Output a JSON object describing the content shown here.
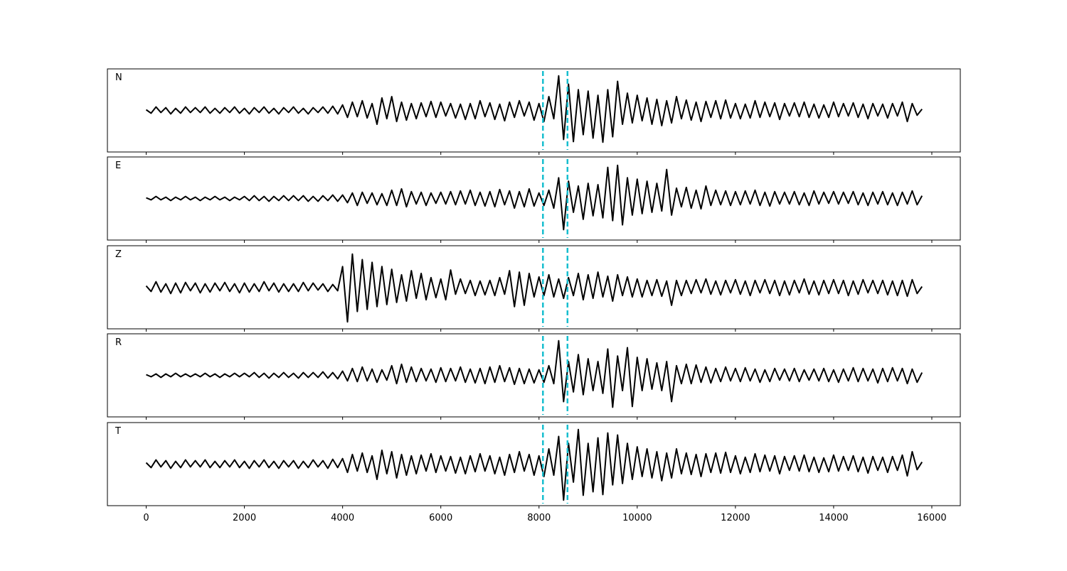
{
  "chart_data": {
    "type": "line",
    "x": [
      0,
      100,
      200,
      300,
      400,
      500,
      600,
      700,
      800,
      900,
      1000,
      1100,
      1200,
      1300,
      1400,
      1500,
      1600,
      1700,
      1800,
      1900,
      2000,
      2100,
      2200,
      2300,
      2400,
      2500,
      2600,
      2700,
      2800,
      2900,
      3000,
      3100,
      3200,
      3300,
      3400,
      3500,
      3600,
      3700,
      3800,
      3900,
      4000,
      4100,
      4200,
      4300,
      4400,
      4500,
      4600,
      4700,
      4800,
      4900,
      5000,
      5100,
      5200,
      5300,
      5400,
      5500,
      5600,
      5700,
      5800,
      5900,
      6000,
      6100,
      6200,
      6300,
      6400,
      6500,
      6600,
      6700,
      6800,
      6900,
      7000,
      7100,
      7200,
      7300,
      7400,
      7500,
      7600,
      7700,
      7800,
      7900,
      8000,
      8100,
      8200,
      8300,
      8400,
      8500,
      8600,
      8700,
      8800,
      8900,
      9000,
      9100,
      9200,
      9300,
      9400,
      9500,
      9600,
      9700,
      9800,
      9900,
      10000,
      10100,
      10200,
      10300,
      10400,
      10500,
      10600,
      10700,
      10800,
      10900,
      11000,
      11100,
      11200,
      11300,
      11400,
      11500,
      11600,
      11700,
      11800,
      11900,
      12000,
      12100,
      12200,
      12300,
      12400,
      12500,
      12600,
      12700,
      12800,
      12900,
      13000,
      13100,
      13200,
      13300,
      13400,
      13500,
      13600,
      13700,
      13800,
      13900,
      14000,
      14100,
      14200,
      14300,
      14400,
      14500,
      14600,
      14700,
      14800,
      14900,
      15000,
      15100,
      15200,
      15300,
      15400,
      15500,
      15600,
      15700,
      15800
    ],
    "series": [
      {
        "name": "N",
        "color": "#000000",
        "values": [
          1,
          -4,
          5,
          -3,
          4,
          -5,
          3,
          -4,
          5,
          -3,
          4,
          -3,
          5,
          -4,
          3,
          -4,
          4,
          -3,
          5,
          -4,
          3,
          -5,
          4,
          -3,
          5,
          -4,
          3,
          -5,
          4,
          -3,
          5,
          -4,
          3,
          -5,
          4,
          -3,
          5,
          -4,
          6,
          -5,
          8,
          -10,
          12,
          -9,
          14,
          -11,
          10,
          -20,
          18,
          -12,
          20,
          -16,
          12,
          -14,
          10,
          -12,
          11,
          -9,
          13,
          -10,
          12,
          -8,
          10,
          -11,
          9,
          -13,
          10,
          -12,
          14,
          -9,
          11,
          -13,
          9,
          -15,
          12,
          -10,
          14,
          -8,
          12,
          -14,
          10,
          -16,
          20,
          -12,
          50,
          -42,
          38,
          -45,
          30,
          -35,
          28,
          -40,
          22,
          -46,
          30,
          -38,
          42,
          -20,
          25,
          -18,
          22,
          -15,
          18,
          -20,
          16,
          -22,
          14,
          -18,
          20,
          -12,
          15,
          -14,
          12,
          -16,
          13,
          -10,
          14,
          -12,
          15,
          -11,
          10,
          -12,
          9,
          -11,
          14,
          -10,
          12,
          -9,
          11,
          -13,
          10,
          -8,
          11,
          -9,
          12,
          -10,
          9,
          -11,
          8,
          -10,
          12,
          -9,
          10,
          -8,
          11,
          -10,
          9,
          -12,
          10,
          -8,
          9,
          -11,
          10,
          -8,
          12,
          -16,
          10,
          -7,
          2
        ]
      },
      {
        "name": "E",
        "color": "#000000",
        "values": [
          1,
          -2,
          3,
          -2,
          2,
          -3,
          2,
          -2,
          3,
          -2,
          2,
          -3,
          2,
          -2,
          3,
          -2,
          2,
          -3,
          2,
          -2,
          3,
          -3,
          4,
          -3,
          3,
          -4,
          3,
          -3,
          4,
          -3,
          4,
          -3,
          4,
          -4,
          3,
          -4,
          4,
          -3,
          5,
          -4,
          5,
          -6,
          8,
          -10,
          9,
          -7,
          8,
          -9,
          7,
          -10,
          12,
          -10,
          14,
          -12,
          10,
          -8,
          9,
          -10,
          8,
          -7,
          9,
          -8,
          10,
          -9,
          11,
          -8,
          12,
          -10,
          9,
          -11,
          10,
          -12,
          13,
          -9,
          11,
          -14,
          10,
          -12,
          14,
          -11,
          8,
          -10,
          12,
          -14,
          30,
          -45,
          25,
          -20,
          18,
          -30,
          22,
          -25,
          20,
          -28,
          45,
          -32,
          48,
          -38,
          30,
          -24,
          28,
          -22,
          25,
          -20,
          22,
          -18,
          42,
          -24,
          15,
          -12,
          16,
          -14,
          12,
          -15,
          18,
          -10,
          12,
          -9,
          11,
          -10,
          10,
          -9,
          11,
          -8,
          12,
          -10,
          9,
          -11,
          10,
          -8,
          9,
          -8,
          10,
          -9,
          8,
          -10,
          11,
          -8,
          9,
          -7,
          10,
          -8,
          9,
          -7,
          10,
          -9,
          8,
          -10,
          9,
          -8,
          10,
          -9,
          8,
          -10,
          9,
          -8,
          11,
          -9,
          4
        ]
      },
      {
        "name": "Z",
        "color": "#000000",
        "values": [
          2,
          -6,
          8,
          -7,
          5,
          -9,
          6,
          -8,
          7,
          -5,
          6,
          -8,
          5,
          -7,
          6,
          -5,
          7,
          -6,
          5,
          -8,
          6,
          -7,
          5,
          -6,
          8,
          -5,
          6,
          -7,
          5,
          -6,
          5,
          -6,
          7,
          -5,
          6,
          -4,
          5,
          -6,
          4,
          -5,
          30,
          -50,
          48,
          -35,
          40,
          -32,
          36,
          -28,
          30,
          -25,
          26,
          -22,
          18,
          -20,
          24,
          -16,
          20,
          -18,
          14,
          -15,
          12,
          -18,
          25,
          -10,
          12,
          -9,
          10,
          -12,
          9,
          -11,
          10,
          -12,
          14,
          -10,
          24,
          -28,
          22,
          -26,
          20,
          -14,
          15,
          -12,
          18,
          -14,
          12,
          -16,
          14,
          -12,
          20,
          -18,
          18,
          -16,
          22,
          -14,
          16,
          -20,
          18,
          -12,
          15,
          -14,
          12,
          -14,
          10,
          -12,
          11,
          -13,
          9,
          -26,
          10,
          -12,
          10,
          -9,
          11,
          -8,
          12,
          -10,
          9,
          -11,
          10,
          -8,
          11,
          -10,
          9,
          -12,
          10,
          -8,
          11,
          -9,
          10,
          -12,
          9,
          -11,
          10,
          -8,
          12,
          -10,
          9,
          -11,
          10,
          -9,
          11,
          -9,
          10,
          -12,
          9,
          -10,
          11,
          -8,
          10,
          -9,
          10,
          -11,
          9,
          -12,
          10,
          -13,
          11,
          -9,
          1
        ]
      },
      {
        "name": "R",
        "color": "#000000",
        "values": [
          1,
          -2,
          2,
          -3,
          2,
          -2,
          3,
          -2,
          2,
          -2,
          2,
          -2,
          3,
          -2,
          2,
          -3,
          2,
          -2,
          3,
          -2,
          3,
          -2,
          4,
          -3,
          3,
          -4,
          3,
          -3,
          4,
          -3,
          3,
          -4,
          4,
          -3,
          4,
          -3,
          5,
          -4,
          4,
          -5,
          6,
          -8,
          10,
          -9,
          12,
          -8,
          9,
          -10,
          8,
          -7,
          14,
          -12,
          16,
          -10,
          12,
          -9,
          10,
          -8,
          9,
          -10,
          11,
          -9,
          10,
          -8,
          12,
          -10,
          9,
          -11,
          10,
          -12,
          12,
          -10,
          14,
          -9,
          11,
          -13,
          10,
          -12,
          9,
          -11,
          8,
          -10,
          14,
          -12,
          50,
          -38,
          20,
          -24,
          30,
          -28,
          24,
          -22,
          20,
          -26,
          38,
          -46,
          28,
          -22,
          40,
          -45,
          26,
          -22,
          24,
          -20,
          18,
          -22,
          20,
          -38,
          14,
          -12,
          16,
          -12,
          15,
          -10,
          12,
          -11,
          10,
          -9,
          12,
          -8,
          10,
          -9,
          11,
          -8,
          9,
          -10,
          8,
          -9,
          10,
          -7,
          9,
          -8,
          10,
          -9,
          8,
          -7,
          9,
          -8,
          10,
          -9,
          8,
          -10,
          9,
          -8,
          11,
          -9,
          10,
          -8,
          9,
          -11,
          10,
          -9,
          11,
          -8,
          10,
          -12,
          9,
          -10,
          4
        ]
      },
      {
        "name": "T",
        "color": "#000000",
        "values": [
          2,
          -5,
          6,
          -4,
          5,
          -6,
          4,
          -5,
          6,
          -4,
          5,
          -4,
          6,
          -5,
          4,
          -5,
          5,
          -4,
          6,
          -5,
          4,
          -6,
          5,
          -4,
          6,
          -5,
          4,
          -6,
          5,
          -4,
          5,
          -6,
          4,
          -5,
          6,
          -4,
          5,
          -6,
          7,
          -5,
          8,
          -12,
          14,
          -10,
          16,
          -12,
          12,
          -22,
          20,
          -14,
          18,
          -20,
          14,
          -16,
          12,
          -14,
          13,
          -10,
          15,
          -12,
          12,
          -10,
          11,
          -13,
          10,
          -14,
          12,
          -11,
          15,
          -10,
          12,
          -14,
          10,
          -16,
          14,
          -12,
          18,
          -10,
          14,
          -16,
          12,
          -18,
          22,
          -16,
          40,
          -52,
          30,
          -26,
          50,
          -45,
          30,
          -40,
          38,
          -44,
          45,
          -30,
          42,
          -28,
          30,
          -22,
          25,
          -18,
          22,
          -20,
          18,
          -24,
          16,
          -20,
          22,
          -14,
          16,
          -15,
          14,
          -18,
          15,
          -12,
          16,
          -13,
          17,
          -12,
          12,
          -14,
          10,
          -12,
          15,
          -11,
          13,
          -10,
          12,
          -14,
          11,
          -9,
          12,
          -10,
          13,
          -11,
          10,
          -12,
          9,
          -11,
          13,
          -10,
          11,
          -9,
          12,
          -11,
          10,
          -13,
          11,
          -9,
          10,
          -12,
          11,
          -9,
          13,
          -17,
          18,
          -8,
          3
        ]
      }
    ],
    "vlines": [
      8080,
      8580
    ],
    "vline_color": "#17becf",
    "xlim": [
      -790,
      16580
    ],
    "xticks": [
      0,
      2000,
      4000,
      6000,
      8000,
      10000,
      12000,
      14000,
      16000
    ],
    "ylim": [
      -60,
      60
    ]
  }
}
